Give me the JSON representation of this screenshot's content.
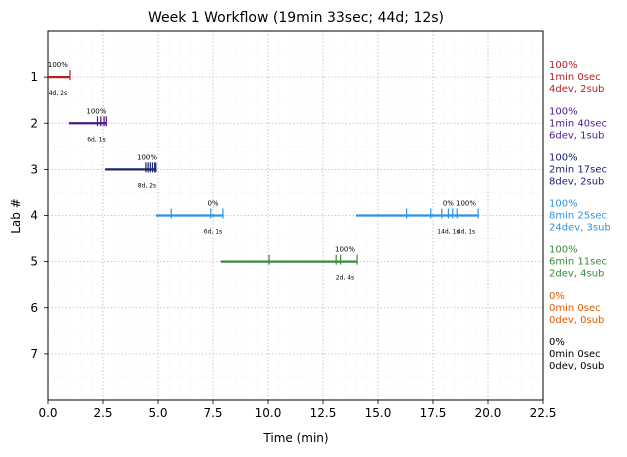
{
  "chart_data": {
    "type": "timeline",
    "title": "Week 1 Workflow (19min 33sec; 44d; 12s)",
    "xlabel": "Time (min)",
    "ylabel": "Lab #",
    "xlim": [
      0,
      22.5
    ],
    "ylim": [
      8,
      0
    ],
    "x_ticks": [
      "0.0",
      "2.5",
      "5.0",
      "7.5",
      "10.0",
      "12.5",
      "15.0",
      "17.5",
      "20.0",
      "22.5"
    ],
    "y_ticks": [
      "1",
      "2",
      "3",
      "4",
      "5",
      "6",
      "7"
    ],
    "grid": true,
    "labs": [
      {
        "lab": 1,
        "color": "#b22222",
        "segments": [
          [
            0,
            1.0
          ]
        ],
        "ticks": [
          1.0
        ],
        "annotations": [
          {
            "x": 0.45,
            "pct": "100%",
            "devsub": "4d, 2s"
          }
        ],
        "summary": [
          "100%",
          "1min 0sec",
          "4dev, 2sub"
        ]
      },
      {
        "lab": 2,
        "color": "#4b1a8c",
        "segments": [
          [
            0.95,
            2.65
          ]
        ],
        "ticks": [
          2.25,
          2.4,
          2.55,
          2.65
        ],
        "annotations": [
          {
            "x": 2.2,
            "pct": "100%",
            "devsub": "6d, 1s"
          }
        ],
        "summary": [
          "100%",
          "1min 40sec",
          "6dev, 1sub"
        ]
      },
      {
        "lab": 3,
        "color": "#1a2370",
        "segments": [
          [
            2.6,
            4.9
          ]
        ],
        "ticks": [
          4.45,
          4.55,
          4.65,
          4.75,
          4.85,
          4.9
        ],
        "annotations": [
          {
            "x": 4.5,
            "pct": "100%",
            "devsub": "8d, 2s"
          }
        ],
        "summary": [
          "100%",
          "2min 17sec",
          "8dev, 2sub"
        ]
      },
      {
        "lab": 4,
        "color": "#2a95e8",
        "segments": [
          [
            4.9,
            7.95
          ],
          [
            14.0,
            19.55
          ]
        ],
        "ticks": [
          5.6,
          7.4,
          7.95,
          16.3,
          17.4,
          17.9,
          18.2,
          18.4,
          18.6,
          19.55
        ],
        "annotations": [
          {
            "x": 7.5,
            "pct": "0%",
            "devsub": "6d, 1s"
          },
          {
            "x": 18.2,
            "pct": "0%",
            "devsub": "14d, 1s"
          },
          {
            "x": 19.0,
            "pct": "100%",
            "devsub": "4d, 1s"
          }
        ],
        "summary": [
          "100%",
          "8min 25sec",
          "24dev, 3sub"
        ]
      },
      {
        "lab": 5,
        "color": "#3a8a3a",
        "segments": [
          [
            7.85,
            14.05
          ]
        ],
        "ticks": [
          10.05,
          13.1,
          13.3,
          14.05
        ],
        "annotations": [
          {
            "x": 13.5,
            "pct": "100%",
            "devsub": "2d, 4s"
          }
        ],
        "summary": [
          "100%",
          "6min 11sec",
          "2dev, 4sub"
        ]
      },
      {
        "lab": 6,
        "color": "#e05a00",
        "segments": [],
        "ticks": [],
        "annotations": [],
        "summary": [
          "0%",
          "0min 0sec",
          "0dev, 0sub"
        ]
      },
      {
        "lab": 7,
        "color": "#000000",
        "segments": [],
        "ticks": [],
        "annotations": [],
        "summary": [
          "0%",
          "0min 0sec",
          "0dev, 0sub"
        ]
      }
    ]
  }
}
